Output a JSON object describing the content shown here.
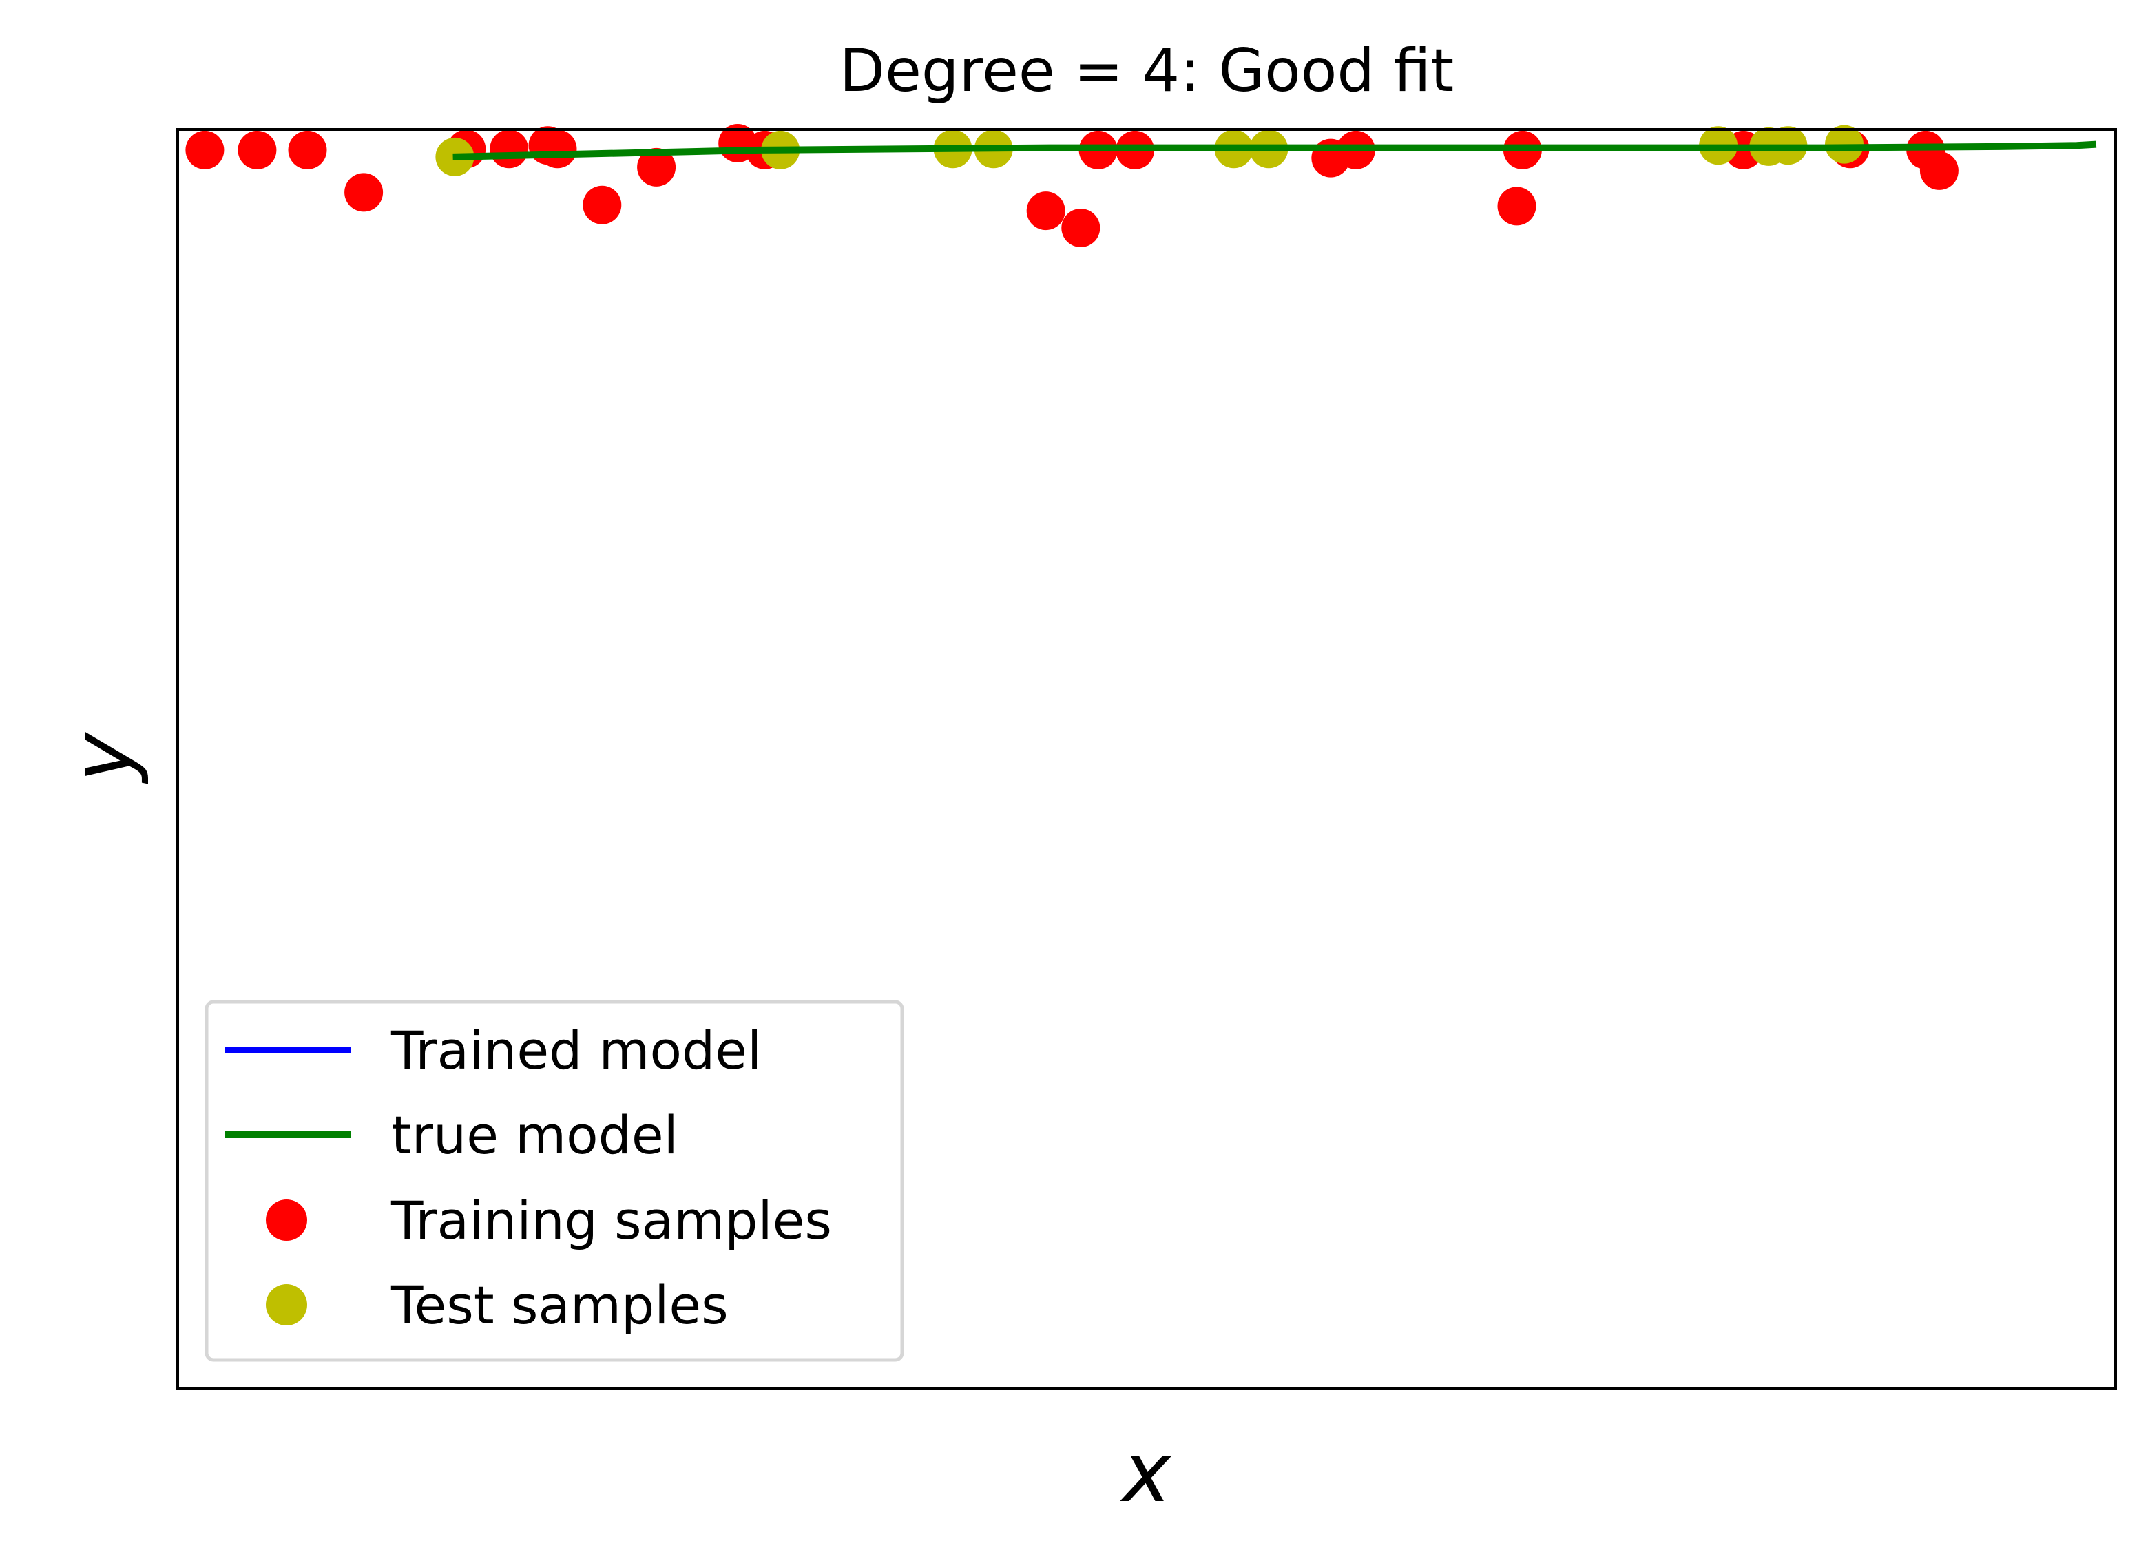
{
  "chart_data": {
    "type": "scatter",
    "title": "Degree = 4: Good fit",
    "xlabel": "x",
    "ylabel": "y",
    "xlim": [
      0,
      1
    ],
    "ylim": [
      -10,
      1
    ],
    "grid": false,
    "ticks_visible": false,
    "legend_placement": "lower-left",
    "series": [
      {
        "name": "Trained model",
        "kind": "line",
        "color": "#0000ff",
        "x": [],
        "y": []
      },
      {
        "name": "true model",
        "kind": "line",
        "color": "#008000",
        "x": [
          0.142,
          0.3,
          0.45,
          0.6,
          0.75,
          0.85,
          0.94,
          0.98,
          0.99
        ],
        "y": [
          0.76,
          0.82,
          0.84,
          0.84,
          0.84,
          0.84,
          0.85,
          0.86,
          0.87
        ]
      },
      {
        "name": "Training samples",
        "kind": "scatter",
        "color": "#ff0000",
        "x": [
          0.014,
          0.041,
          0.067,
          0.096,
          0.149,
          0.171,
          0.191,
          0.196,
          0.219,
          0.247,
          0.289,
          0.303,
          0.448,
          0.466,
          0.475,
          0.494,
          0.595,
          0.608,
          0.691,
          0.694,
          0.808,
          0.863,
          0.902,
          0.909
        ],
        "y": [
          0.82,
          0.82,
          0.82,
          0.45,
          0.83,
          0.83,
          0.86,
          0.83,
          0.34,
          0.67,
          0.88,
          0.82,
          0.29,
          0.14,
          0.82,
          0.82,
          0.75,
          0.82,
          0.33,
          0.82,
          0.82,
          0.83,
          0.82,
          0.64
        ]
      },
      {
        "name": "Test samples",
        "kind": "scatter",
        "color": "#bfbf00",
        "x": [
          0.143,
          0.311,
          0.4,
          0.421,
          0.545,
          0.563,
          0.795,
          0.821,
          0.831,
          0.86
        ],
        "y": [
          0.76,
          0.82,
          0.83,
          0.83,
          0.83,
          0.83,
          0.86,
          0.85,
          0.86,
          0.87
        ]
      }
    ]
  }
}
